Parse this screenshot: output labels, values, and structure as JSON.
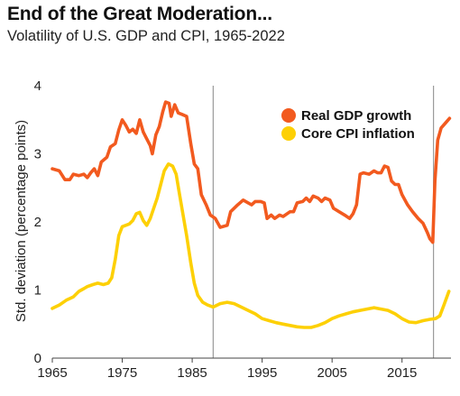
{
  "header": {
    "title": "End of the Great Moderation...",
    "subtitle": "Volatility of U.S. GDP and CPI, 1965-2022"
  },
  "chart_data": {
    "type": "line",
    "title": "End of the Great Moderation...",
    "subtitle": "Volatility of U.S. GDP and CPI, 1965-2022",
    "xlabel": "",
    "ylabel": "Std. deviation (percentage points)",
    "xlim": [
      1965,
      2022
    ],
    "ylim": [
      0,
      4
    ],
    "x_ticks": [
      1965,
      1975,
      1985,
      1995,
      2005,
      2015
    ],
    "y_ticks": [
      0,
      1,
      2,
      3,
      4
    ],
    "vertical_reference_lines": [
      1988,
      2019.5
    ],
    "legend_position": "top-right",
    "grid": false,
    "series": [
      {
        "name": "Real GDP growth",
        "color": "#f25a1f",
        "points": [
          [
            1965.0,
            2.78
          ],
          [
            1966.0,
            2.75
          ],
          [
            1966.8,
            2.62
          ],
          [
            1967.5,
            2.62
          ],
          [
            1968.0,
            2.7
          ],
          [
            1968.8,
            2.68
          ],
          [
            1969.5,
            2.7
          ],
          [
            1970.0,
            2.65
          ],
          [
            1970.5,
            2.72
          ],
          [
            1971.0,
            2.78
          ],
          [
            1971.5,
            2.68
          ],
          [
            1972.0,
            2.88
          ],
          [
            1972.8,
            2.95
          ],
          [
            1973.3,
            3.1
          ],
          [
            1974.0,
            3.15
          ],
          [
            1974.5,
            3.35
          ],
          [
            1975.0,
            3.5
          ],
          [
            1975.5,
            3.42
          ],
          [
            1976.0,
            3.32
          ],
          [
            1976.5,
            3.36
          ],
          [
            1977.0,
            3.3
          ],
          [
            1977.5,
            3.5
          ],
          [
            1978.0,
            3.32
          ],
          [
            1978.5,
            3.22
          ],
          [
            1979.0,
            3.12
          ],
          [
            1979.3,
            3.0
          ],
          [
            1979.8,
            3.28
          ],
          [
            1980.3,
            3.4
          ],
          [
            1980.8,
            3.62
          ],
          [
            1981.2,
            3.76
          ],
          [
            1981.7,
            3.74
          ],
          [
            1982.0,
            3.55
          ],
          [
            1982.5,
            3.72
          ],
          [
            1983.0,
            3.6
          ],
          [
            1983.5,
            3.58
          ],
          [
            1984.2,
            3.55
          ],
          [
            1984.8,
            3.15
          ],
          [
            1985.3,
            2.85
          ],
          [
            1985.8,
            2.78
          ],
          [
            1986.3,
            2.4
          ],
          [
            1987.0,
            2.25
          ],
          [
            1987.6,
            2.1
          ],
          [
            1988.3,
            2.05
          ],
          [
            1989.0,
            1.92
          ],
          [
            1990.0,
            1.95
          ],
          [
            1990.5,
            2.15
          ],
          [
            1991.5,
            2.25
          ],
          [
            1992.3,
            2.32
          ],
          [
            1993.0,
            2.28
          ],
          [
            1993.5,
            2.25
          ],
          [
            1994.0,
            2.3
          ],
          [
            1994.8,
            2.3
          ],
          [
            1995.3,
            2.28
          ],
          [
            1995.7,
            2.05
          ],
          [
            1996.3,
            2.1
          ],
          [
            1996.8,
            2.05
          ],
          [
            1997.5,
            2.1
          ],
          [
            1998.0,
            2.08
          ],
          [
            1999.0,
            2.15
          ],
          [
            1999.5,
            2.15
          ],
          [
            2000.0,
            2.28
          ],
          [
            2000.8,
            2.3
          ],
          [
            2001.3,
            2.35
          ],
          [
            2001.8,
            2.3
          ],
          [
            2002.3,
            2.38
          ],
          [
            2003.0,
            2.35
          ],
          [
            2003.5,
            2.3
          ],
          [
            2004.0,
            2.35
          ],
          [
            2004.7,
            2.32
          ],
          [
            2005.2,
            2.2
          ],
          [
            2006.0,
            2.15
          ],
          [
            2006.8,
            2.1
          ],
          [
            2007.5,
            2.05
          ],
          [
            2008.0,
            2.12
          ],
          [
            2008.5,
            2.25
          ],
          [
            2009.0,
            2.7
          ],
          [
            2009.5,
            2.72
          ],
          [
            2010.3,
            2.7
          ],
          [
            2011.0,
            2.75
          ],
          [
            2011.5,
            2.72
          ],
          [
            2012.0,
            2.72
          ],
          [
            2012.5,
            2.82
          ],
          [
            2013.0,
            2.8
          ],
          [
            2013.5,
            2.6
          ],
          [
            2014.0,
            2.55
          ],
          [
            2014.5,
            2.55
          ],
          [
            2015.0,
            2.4
          ],
          [
            2015.8,
            2.25
          ],
          [
            2016.5,
            2.15
          ],
          [
            2017.3,
            2.05
          ],
          [
            2018.0,
            1.98
          ],
          [
            2018.6,
            1.85
          ],
          [
            2019.0,
            1.75
          ],
          [
            2019.4,
            1.7
          ],
          [
            2019.7,
            2.6
          ],
          [
            2020.1,
            3.2
          ],
          [
            2020.6,
            3.38
          ],
          [
            2021.2,
            3.45
          ],
          [
            2021.8,
            3.52
          ]
        ]
      },
      {
        "name": "Core CPI inflation",
        "color": "#fdd005",
        "points": [
          [
            1965.0,
            0.73
          ],
          [
            1966.0,
            0.78
          ],
          [
            1967.0,
            0.85
          ],
          [
            1968.0,
            0.9
          ],
          [
            1968.8,
            0.98
          ],
          [
            1969.5,
            1.02
          ],
          [
            1970.0,
            1.05
          ],
          [
            1970.8,
            1.08
          ],
          [
            1971.5,
            1.1
          ],
          [
            1972.3,
            1.08
          ],
          [
            1973.0,
            1.1
          ],
          [
            1973.5,
            1.18
          ],
          [
            1974.0,
            1.45
          ],
          [
            1974.5,
            1.8
          ],
          [
            1975.0,
            1.93
          ],
          [
            1975.5,
            1.95
          ],
          [
            1976.0,
            1.97
          ],
          [
            1976.5,
            2.02
          ],
          [
            1977.0,
            2.12
          ],
          [
            1977.5,
            2.14
          ],
          [
            1978.0,
            2.02
          ],
          [
            1978.5,
            1.95
          ],
          [
            1979.0,
            2.05
          ],
          [
            1979.5,
            2.2
          ],
          [
            1980.0,
            2.35
          ],
          [
            1980.5,
            2.55
          ],
          [
            1981.0,
            2.75
          ],
          [
            1981.6,
            2.85
          ],
          [
            1982.2,
            2.82
          ],
          [
            1982.7,
            2.7
          ],
          [
            1983.2,
            2.4
          ],
          [
            1983.7,
            2.1
          ],
          [
            1984.2,
            1.8
          ],
          [
            1984.8,
            1.4
          ],
          [
            1985.3,
            1.1
          ],
          [
            1985.8,
            0.92
          ],
          [
            1986.5,
            0.82
          ],
          [
            1987.2,
            0.78
          ],
          [
            1988.0,
            0.75
          ],
          [
            1989.0,
            0.8
          ],
          [
            1990.0,
            0.82
          ],
          [
            1991.0,
            0.8
          ],
          [
            1992.0,
            0.75
          ],
          [
            1993.0,
            0.7
          ],
          [
            1994.0,
            0.65
          ],
          [
            1995.0,
            0.58
          ],
          [
            1996.0,
            0.55
          ],
          [
            1997.0,
            0.52
          ],
          [
            1998.0,
            0.5
          ],
          [
            1999.0,
            0.48
          ],
          [
            2000.0,
            0.46
          ],
          [
            2001.0,
            0.45
          ],
          [
            2002.0,
            0.45
          ],
          [
            2003.0,
            0.48
          ],
          [
            2004.0,
            0.52
          ],
          [
            2005.0,
            0.58
          ],
          [
            2006.0,
            0.62
          ],
          [
            2007.0,
            0.65
          ],
          [
            2008.0,
            0.68
          ],
          [
            2009.0,
            0.7
          ],
          [
            2010.0,
            0.72
          ],
          [
            2011.0,
            0.74
          ],
          [
            2012.0,
            0.72
          ],
          [
            2013.0,
            0.7
          ],
          [
            2014.0,
            0.65
          ],
          [
            2015.0,
            0.58
          ],
          [
            2016.0,
            0.53
          ],
          [
            2017.0,
            0.52
          ],
          [
            2018.0,
            0.55
          ],
          [
            2019.0,
            0.57
          ],
          [
            2019.8,
            0.58
          ],
          [
            2020.4,
            0.62
          ],
          [
            2021.0,
            0.78
          ],
          [
            2021.7,
            0.98
          ]
        ]
      }
    ]
  }
}
